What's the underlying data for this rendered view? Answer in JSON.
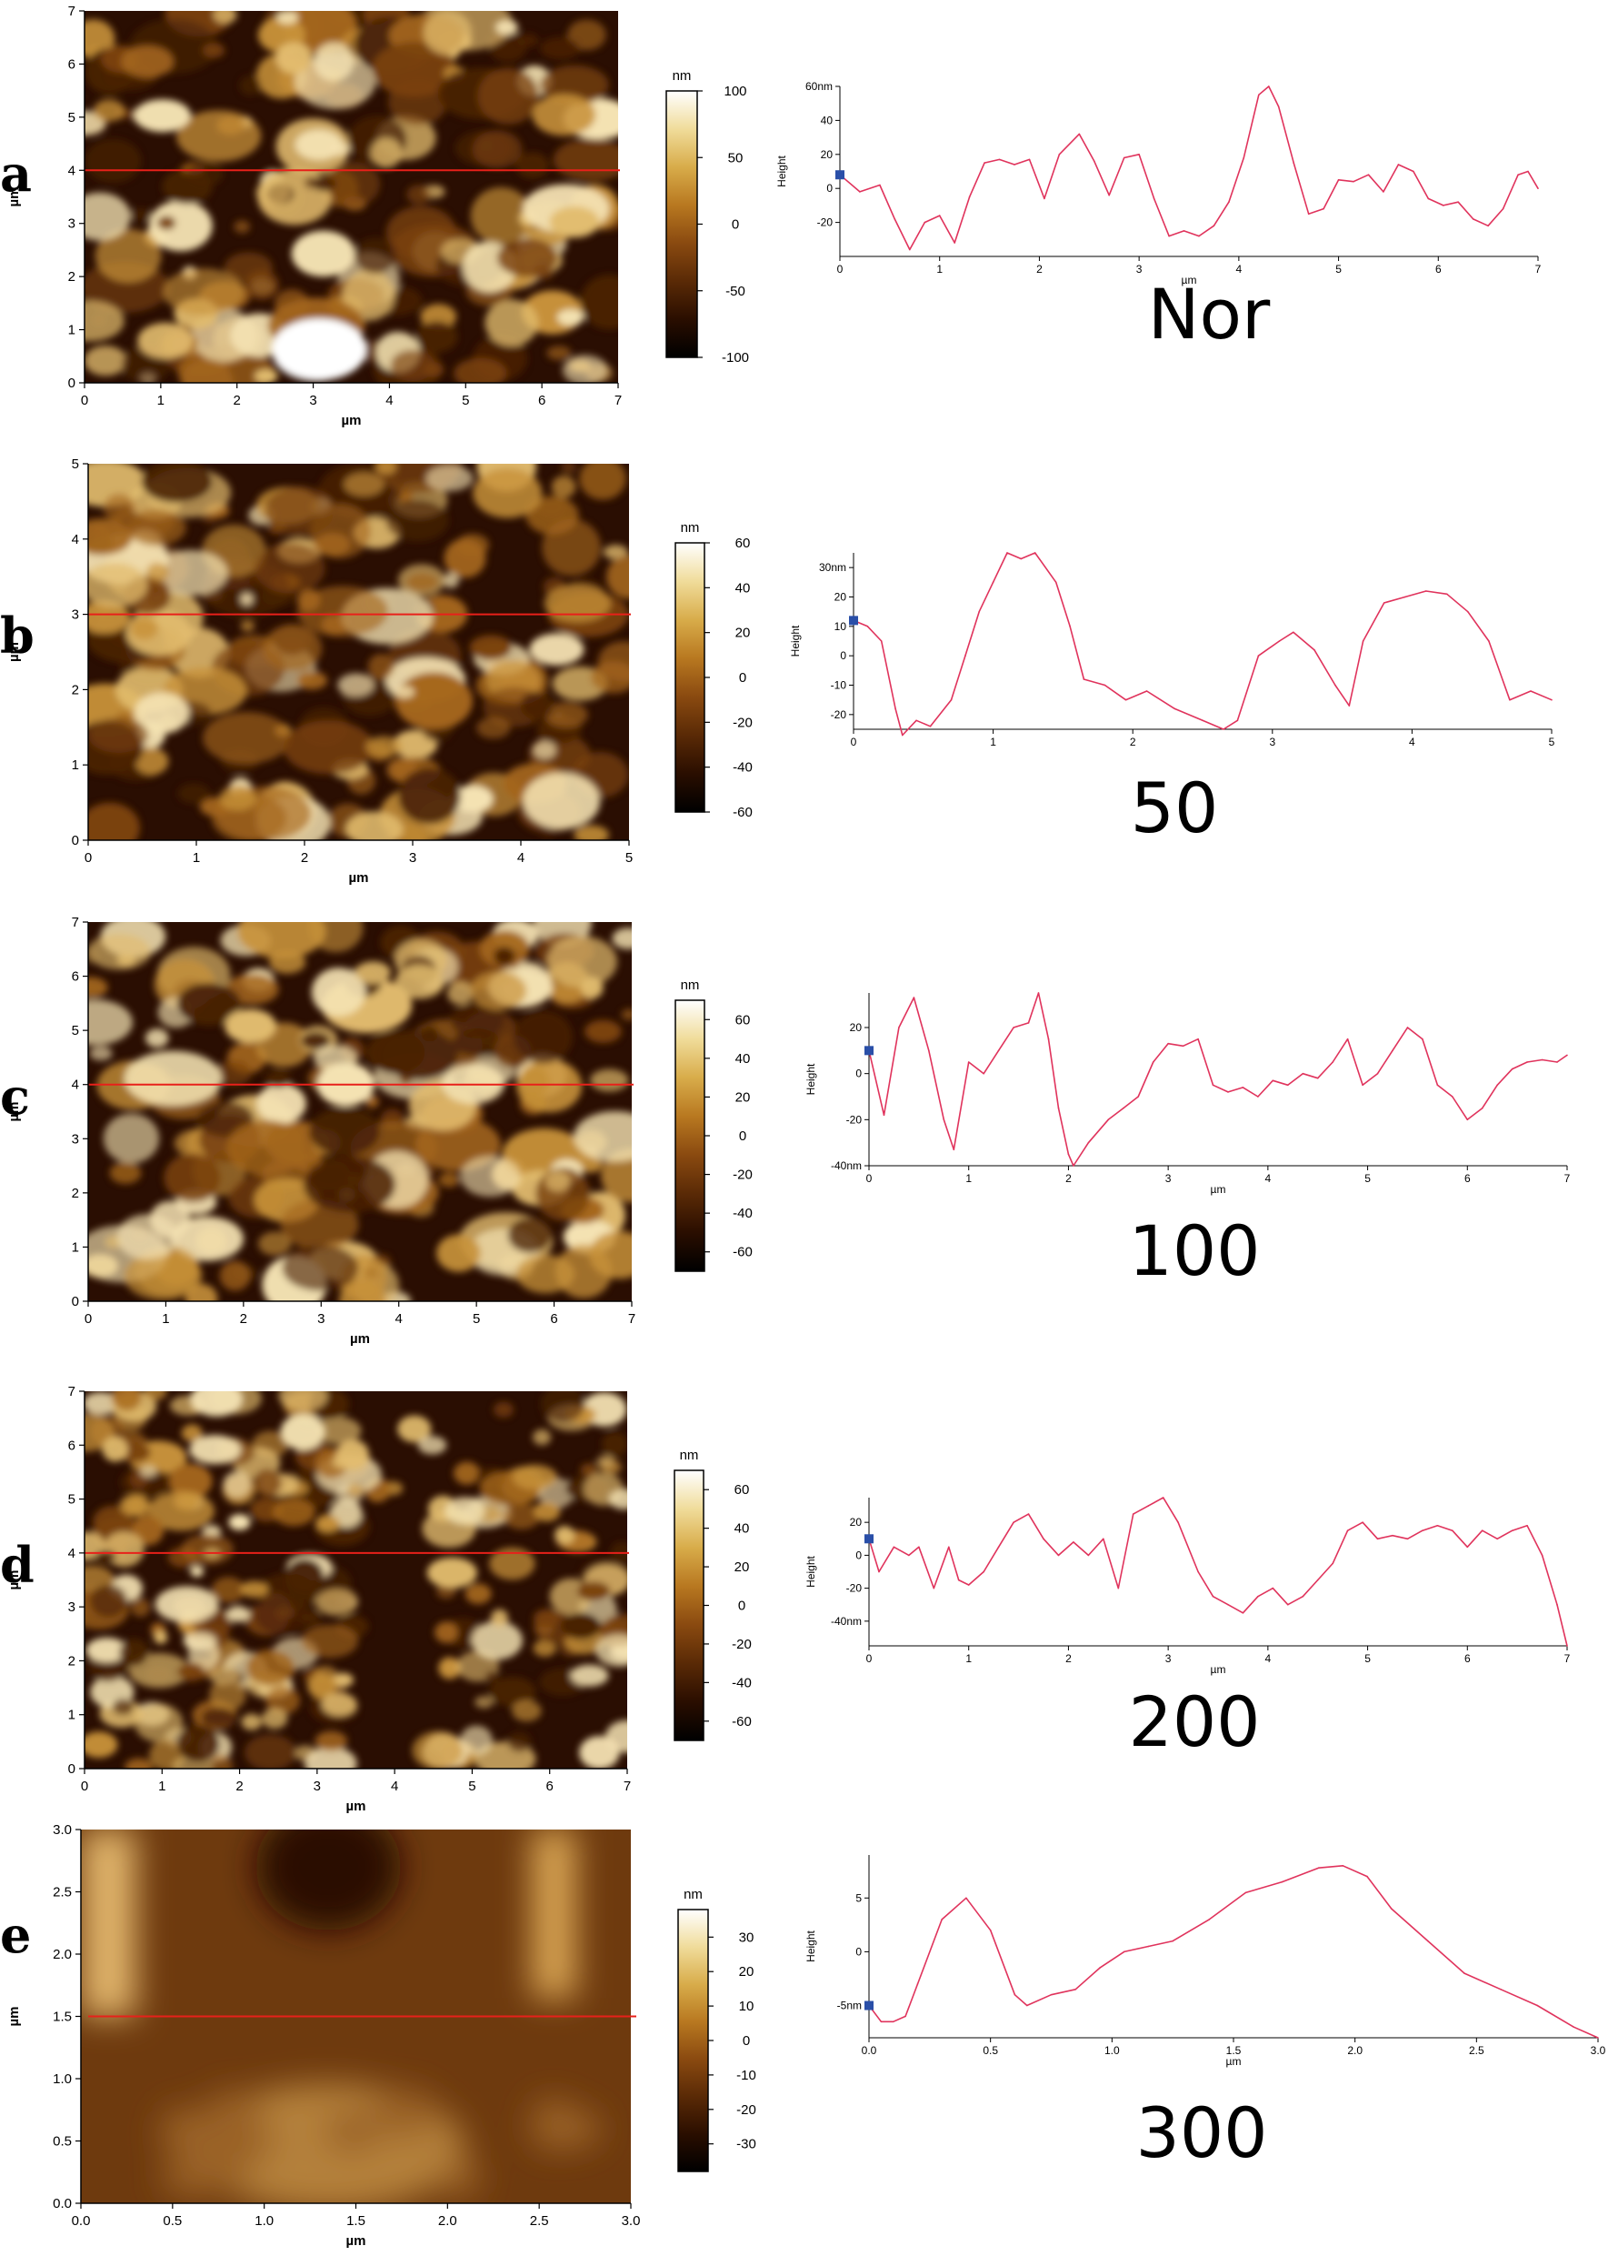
{
  "chart_data": [
    {
      "type": "heatmap+line",
      "panel_label": "a",
      "caption": "Nor",
      "afm_image": {
        "x_label": "µm",
        "y_label": "µm",
        "x_range": [
          0,
          7
        ],
        "y_range": [
          0,
          7
        ],
        "x_ticks": [
          "0",
          "1",
          "2",
          "3",
          "4",
          "5",
          "6",
          "7"
        ],
        "y_ticks": [
          "0",
          "1",
          "2",
          "3",
          "4",
          "5",
          "6",
          "7"
        ],
        "scan_line_y": 4
      },
      "colorbar": {
        "unit": "nm",
        "range": [
          -100,
          100
        ],
        "ticks": [
          "100",
          "50",
          "0",
          "-50",
          "-100"
        ]
      },
      "profile": {
        "y_label": "Height",
        "x_label": "µm",
        "x_range": [
          0,
          7
        ],
        "y_range": [
          -40,
          60
        ],
        "x_ticks": [
          "0",
          "1",
          "2",
          "3",
          "4",
          "5",
          "6",
          "7"
        ],
        "y_ticks": [
          {
            "value": 60,
            "label": "60nm"
          },
          {
            "value": 40,
            "label": "40"
          },
          {
            "value": 20,
            "label": "20"
          },
          {
            "value": 0,
            "label": "0"
          },
          {
            "value": -20,
            "label": "-20"
          }
        ],
        "x": [
          0,
          0.2,
          0.4,
          0.55,
          0.7,
          0.85,
          1.0,
          1.15,
          1.3,
          1.45,
          1.6,
          1.75,
          1.9,
          2.05,
          2.2,
          2.4,
          2.55,
          2.7,
          2.85,
          3.0,
          3.15,
          3.3,
          3.45,
          3.6,
          3.75,
          3.9,
          4.05,
          4.2,
          4.3,
          4.4,
          4.55,
          4.7,
          4.85,
          5.0,
          5.15,
          5.3,
          5.45,
          5.6,
          5.75,
          5.9,
          6.05,
          6.2,
          6.35,
          6.5,
          6.65,
          6.8,
          6.9,
          7.0
        ],
        "y": [
          8,
          -2,
          2,
          -18,
          -36,
          -20,
          -16,
          -32,
          -5,
          15,
          17,
          14,
          17,
          -6,
          20,
          32,
          16,
          -4,
          18,
          20,
          -6,
          -28,
          -25,
          -28,
          -22,
          -8,
          18,
          55,
          60,
          48,
          15,
          -15,
          -12,
          5,
          4,
          8,
          -2,
          14,
          10,
          -6,
          -10,
          -8,
          -18,
          -22,
          -12,
          8,
          10,
          0
        ]
      }
    },
    {
      "type": "heatmap+line",
      "panel_label": "b",
      "caption": "50",
      "afm_image": {
        "x_label": "µm",
        "y_label": "µm",
        "x_range": [
          0,
          5
        ],
        "y_range": [
          0,
          5
        ],
        "x_ticks": [
          "0",
          "1",
          "2",
          "3",
          "4",
          "5"
        ],
        "y_ticks": [
          "0",
          "1",
          "2",
          "3",
          "4",
          "5"
        ],
        "scan_line_y": 3
      },
      "colorbar": {
        "unit": "nm",
        "range": [
          -60,
          60
        ],
        "ticks": [
          "60",
          "40",
          "20",
          "0",
          "-20",
          "-40",
          "-60"
        ]
      },
      "profile": {
        "y_label": "Height",
        "x_label": "",
        "x_range": [
          0,
          5
        ],
        "y_range": [
          -25,
          35
        ],
        "x_ticks": [
          "0",
          "1",
          "2",
          "3",
          "4",
          "5"
        ],
        "y_ticks": [
          {
            "value": 30,
            "label": "30nm"
          },
          {
            "value": 20,
            "label": "20"
          },
          {
            "value": 10,
            "label": "10"
          },
          {
            "value": 0,
            "label": "0"
          },
          {
            "value": -10,
            "label": "-10"
          },
          {
            "value": -20,
            "label": "-20"
          }
        ],
        "x": [
          0,
          0.1,
          0.2,
          0.3,
          0.35,
          0.45,
          0.55,
          0.7,
          0.8,
          0.9,
          1.0,
          1.1,
          1.2,
          1.3,
          1.45,
          1.55,
          1.65,
          1.8,
          1.95,
          2.1,
          2.3,
          2.5,
          2.65,
          2.75,
          2.9,
          3.05,
          3.15,
          3.3,
          3.45,
          3.55,
          3.65,
          3.8,
          3.95,
          4.1,
          4.25,
          4.4,
          4.55,
          4.7,
          4.85,
          5.0
        ],
        "y": [
          12,
          10,
          5,
          -18,
          -27,
          -22,
          -24,
          -15,
          0,
          15,
          25,
          35,
          33,
          35,
          25,
          10,
          -8,
          -10,
          -15,
          -12,
          -18,
          -22,
          -25,
          -22,
          0,
          5,
          8,
          2,
          -10,
          -17,
          5,
          18,
          20,
          22,
          21,
          15,
          5,
          -15,
          -12,
          -15
        ]
      }
    },
    {
      "type": "heatmap+line",
      "panel_label": "c",
      "caption": "100",
      "afm_image": {
        "x_label": "µm",
        "y_label": "µm",
        "x_range": [
          0,
          7
        ],
        "y_range": [
          0,
          7
        ],
        "x_ticks": [
          "0",
          "1",
          "2",
          "3",
          "4",
          "5",
          "6",
          "7"
        ],
        "y_ticks": [
          "0",
          "1",
          "2",
          "3",
          "4",
          "5",
          "6",
          "7"
        ],
        "scan_line_y": 4
      },
      "colorbar": {
        "unit": "nm",
        "range": [
          -70,
          70
        ],
        "ticks": [
          "60",
          "40",
          "20",
          "0",
          "-20",
          "-40",
          "-60"
        ]
      },
      "profile": {
        "y_label": "Height",
        "x_label": "µm",
        "x_range": [
          0,
          7
        ],
        "y_range": [
          -40,
          35
        ],
        "x_ticks": [
          "0",
          "1",
          "2",
          "3",
          "4",
          "5",
          "6",
          "7"
        ],
        "y_ticks": [
          {
            "value": 20,
            "label": "20"
          },
          {
            "value": 0,
            "label": "0"
          },
          {
            "value": -20,
            "label": "-20"
          },
          {
            "value": -40,
            "label": "-40nm"
          }
        ],
        "x": [
          0,
          0.15,
          0.3,
          0.45,
          0.6,
          0.75,
          0.85,
          1.0,
          1.15,
          1.3,
          1.45,
          1.6,
          1.7,
          1.8,
          1.9,
          2.0,
          2.05,
          2.2,
          2.4,
          2.55,
          2.7,
          2.85,
          3.0,
          3.15,
          3.3,
          3.45,
          3.6,
          3.75,
          3.9,
          4.05,
          4.2,
          4.35,
          4.5,
          4.65,
          4.8,
          4.95,
          5.1,
          5.25,
          5.4,
          5.55,
          5.7,
          5.85,
          6.0,
          6.15,
          6.3,
          6.45,
          6.6,
          6.75,
          6.9,
          7.0
        ],
        "y": [
          10,
          -18,
          20,
          33,
          10,
          -20,
          -33,
          5,
          0,
          10,
          20,
          22,
          35,
          15,
          -15,
          -35,
          -40,
          -30,
          -20,
          -15,
          -10,
          5,
          13,
          12,
          15,
          -5,
          -8,
          -6,
          -10,
          -3,
          -5,
          0,
          -2,
          5,
          15,
          -5,
          0,
          10,
          20,
          15,
          -5,
          -10,
          -20,
          -15,
          -5,
          2,
          5,
          6,
          5,
          8
        ]
      }
    },
    {
      "type": "heatmap+line",
      "panel_label": "d",
      "caption": "200",
      "afm_image": {
        "x_label": "µm",
        "y_label": "µm",
        "x_range": [
          0,
          7
        ],
        "y_range": [
          0,
          7
        ],
        "x_ticks": [
          "0",
          "1",
          "2",
          "3",
          "4",
          "5",
          "6",
          "7"
        ],
        "y_ticks": [
          "0",
          "1",
          "2",
          "3",
          "4",
          "5",
          "6",
          "7"
        ],
        "scan_line_y": 4
      },
      "colorbar": {
        "unit": "nm",
        "range": [
          -70,
          70
        ],
        "ticks": [
          "60",
          "40",
          "20",
          "0",
          "-20",
          "-40",
          "-60"
        ]
      },
      "profile": {
        "y_label": "Height",
        "x_label": "µm",
        "x_range": [
          0,
          7
        ],
        "y_range": [
          -55,
          35
        ],
        "x_ticks": [
          "0",
          "1",
          "2",
          "3",
          "4",
          "5",
          "6",
          "7"
        ],
        "y_ticks": [
          {
            "value": 20,
            "label": "20"
          },
          {
            "value": 0,
            "label": "0"
          },
          {
            "value": -20,
            "label": "-20"
          },
          {
            "value": -40,
            "label": "-40nm"
          }
        ],
        "x": [
          0,
          0.1,
          0.25,
          0.4,
          0.5,
          0.65,
          0.8,
          0.9,
          1.0,
          1.15,
          1.3,
          1.45,
          1.6,
          1.75,
          1.9,
          2.05,
          2.2,
          2.35,
          2.5,
          2.65,
          2.8,
          2.95,
          3.1,
          3.3,
          3.45,
          3.6,
          3.75,
          3.9,
          4.05,
          4.2,
          4.35,
          4.5,
          4.65,
          4.8,
          4.95,
          5.1,
          5.25,
          5.4,
          5.55,
          5.7,
          5.85,
          6.0,
          6.15,
          6.3,
          6.45,
          6.6,
          6.75,
          6.9,
          7.0
        ],
        "y": [
          10,
          -10,
          5,
          0,
          5,
          -20,
          5,
          -15,
          -18,
          -10,
          5,
          20,
          25,
          10,
          0,
          8,
          0,
          10,
          -20,
          25,
          30,
          35,
          20,
          -10,
          -25,
          -30,
          -35,
          -25,
          -20,
          -30,
          -25,
          -15,
          -5,
          15,
          20,
          10,
          12,
          10,
          15,
          18,
          15,
          5,
          15,
          10,
          15,
          18,
          0,
          -30,
          -55
        ]
      }
    },
    {
      "type": "heatmap+line",
      "panel_label": "e",
      "caption": "300",
      "afm_image": {
        "x_label": "µm",
        "y_label": "µm",
        "x_range": [
          0,
          3
        ],
        "y_range": [
          0,
          3
        ],
        "x_ticks": [
          "0.0",
          "0.5",
          "1.0",
          "1.5",
          "2.0",
          "2.5",
          "3.0"
        ],
        "y_ticks": [
          "0.0",
          "0.5",
          "1.0",
          "1.5",
          "2.0",
          "2.5",
          "3.0"
        ],
        "scan_line_y": 1.5
      },
      "colorbar": {
        "unit": "nm",
        "range": [
          -38,
          38
        ],
        "ticks": [
          "30",
          "20",
          "10",
          "0",
          "-10",
          "-20",
          "-30"
        ]
      },
      "profile": {
        "y_label": "Height",
        "x_label": "µm",
        "x_range": [
          0,
          3
        ],
        "y_range": [
          -8,
          9
        ],
        "x_ticks": [
          "0.0",
          "0.5",
          "1.0",
          "1.5",
          "2.0",
          "2.5",
          "3.0"
        ],
        "y_ticks": [
          {
            "value": 5,
            "label": "5"
          },
          {
            "value": 0,
            "label": "0"
          },
          {
            "value": -5,
            "label": "-5nm"
          }
        ],
        "x": [
          0,
          0.05,
          0.1,
          0.15,
          0.2,
          0.3,
          0.4,
          0.5,
          0.6,
          0.65,
          0.75,
          0.85,
          0.95,
          1.05,
          1.15,
          1.25,
          1.4,
          1.55,
          1.7,
          1.85,
          1.95,
          2.05,
          2.15,
          2.3,
          2.45,
          2.6,
          2.75,
          2.9,
          3.0
        ],
        "y": [
          -5,
          -6.5,
          -6.5,
          -6,
          -3,
          3,
          5,
          2,
          -4,
          -5,
          -4,
          -3.5,
          -1.5,
          0,
          0.5,
          1,
          3,
          5.5,
          6.5,
          7.8,
          8,
          7,
          4,
          1,
          -2,
          -3.5,
          -5,
          -7,
          -8
        ]
      }
    }
  ],
  "colors": {
    "scan_line": "#e8201a",
    "profile_line": "#e0335c",
    "marker": "#2a4fa8",
    "colormap": [
      "#000000",
      "#2a0e00",
      "#5a2a06",
      "#8a4a10",
      "#b87820",
      "#d8ac4a",
      "#f0dc9a",
      "#ffffff"
    ]
  }
}
